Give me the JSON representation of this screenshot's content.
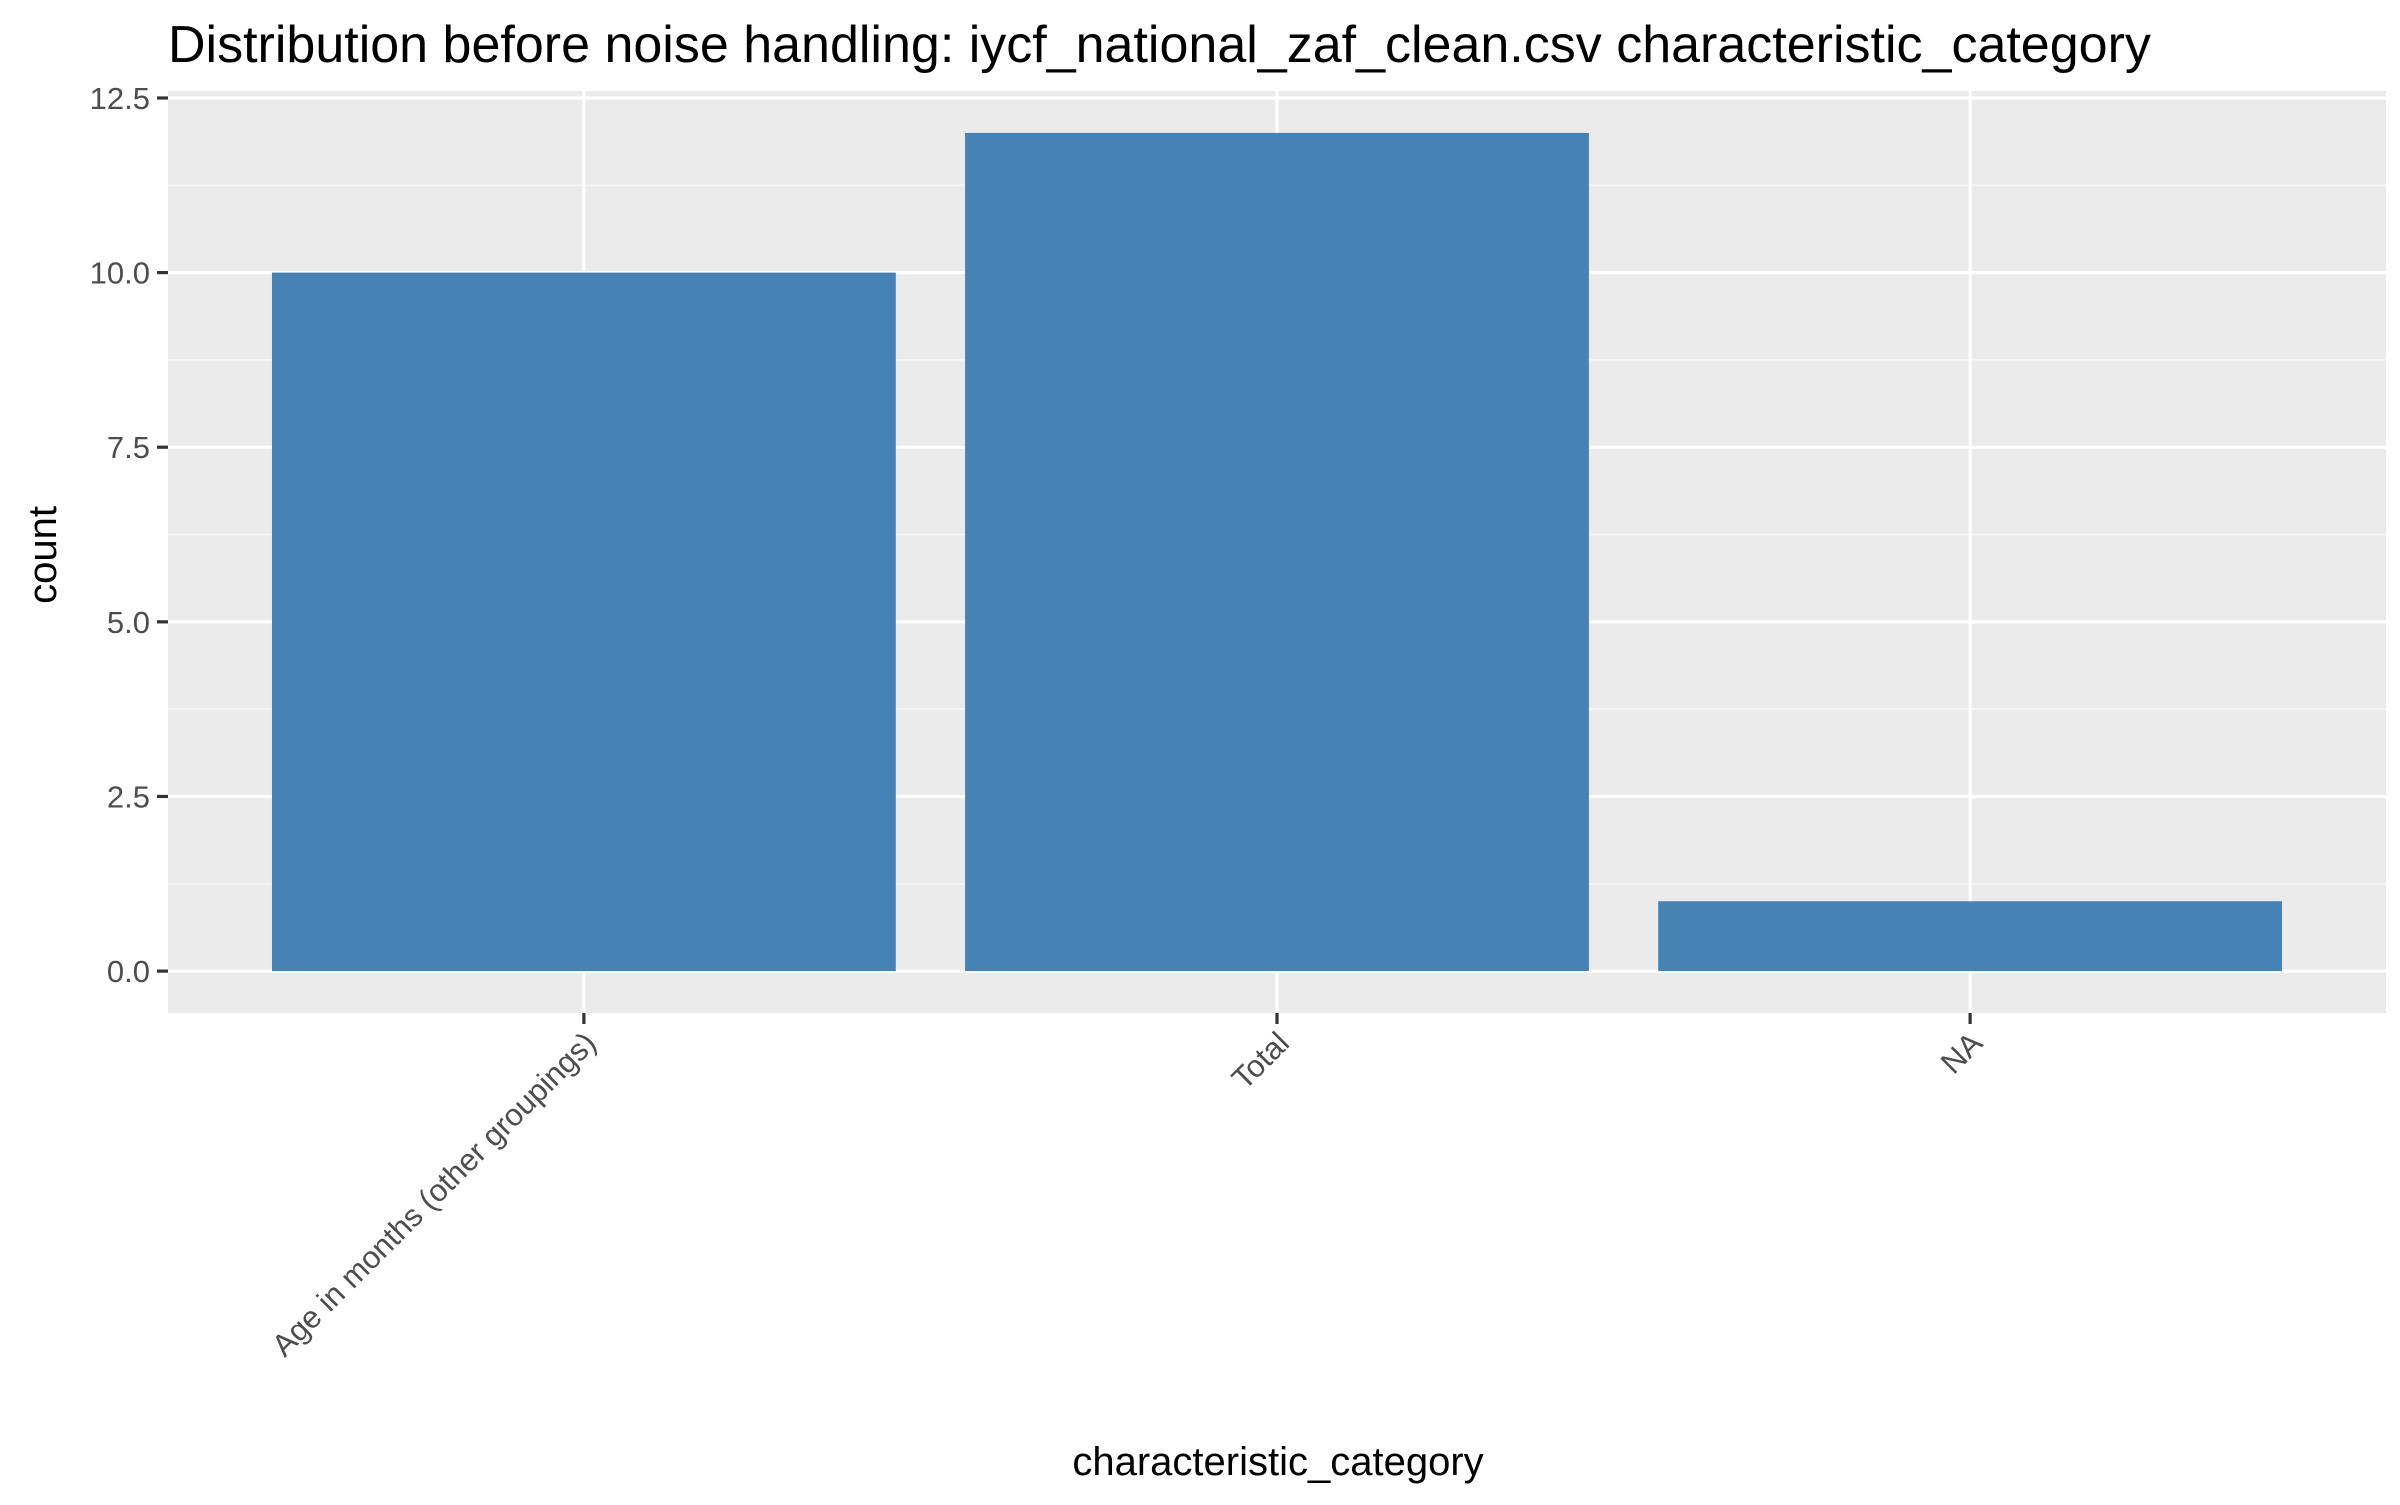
{
  "colors": {
    "panel_background": "#ebebeb",
    "grid_major": "#ffffff",
    "grid_minor": "#f5f5f5",
    "bar_fill": "#4682b4",
    "tick_mark": "#333333",
    "tick_label": "#4d4d4d",
    "text": "#000000"
  },
  "chart_data": {
    "type": "bar",
    "title": "Distribution before noise handling: iycf_national_zaf_clean.csv characteristic_category",
    "xlabel": "characteristic_category",
    "ylabel": "count",
    "categories": [
      "Age in months (other groupings)",
      "Total",
      "NA"
    ],
    "values": [
      10,
      12,
      1
    ],
    "ylim": [
      -0.6,
      12.6
    ],
    "y_ticks": [
      0,
      2.5,
      5,
      7.5,
      10,
      12.5
    ],
    "y_tick_labels": [
      "0.0",
      "2.5",
      "5.0",
      "7.5",
      "10.0",
      "12.5"
    ],
    "grid": true,
    "legend": "none"
  }
}
